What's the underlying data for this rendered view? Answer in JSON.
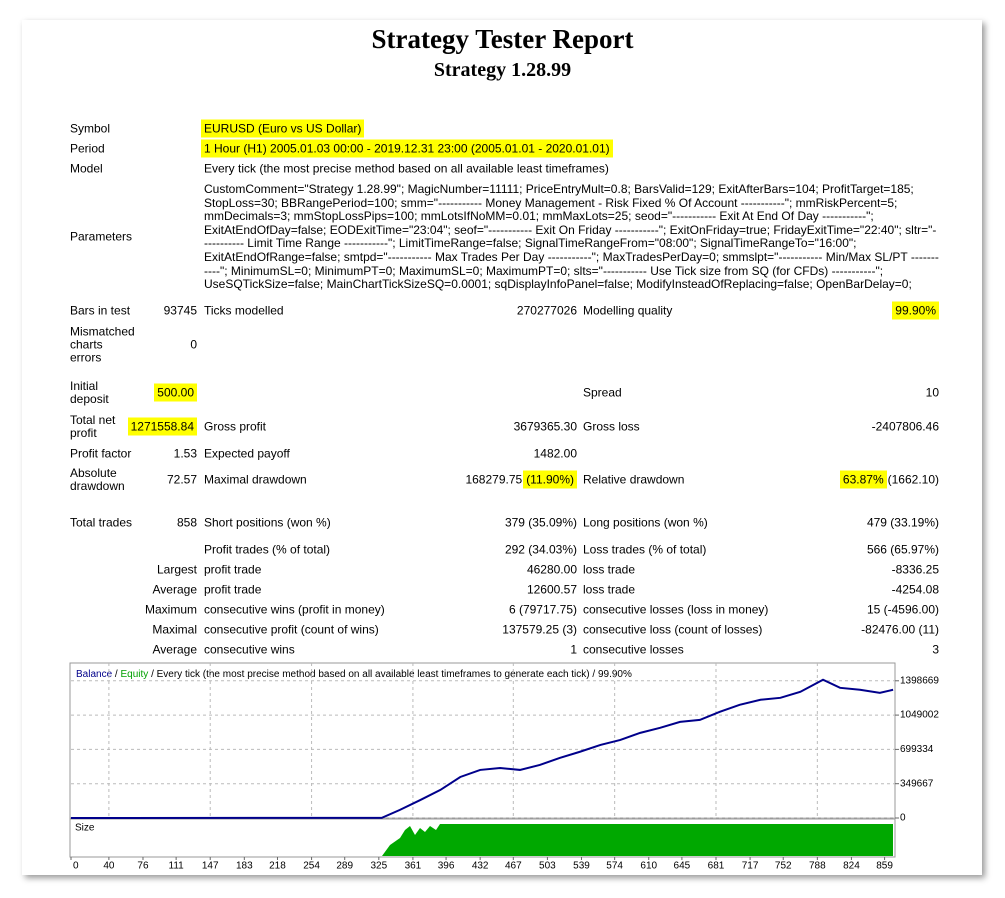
{
  "header": {
    "title": "Strategy Tester Report",
    "subtitle": "Strategy 1.28.99"
  },
  "info": {
    "symbol": {
      "label": "Symbol",
      "value": "EURUSD (Euro vs US Dollar)"
    },
    "period": {
      "label": "Period",
      "value": "1 Hour (H1) 2005.01.03 00:00 - 2019.12.31 23:00 (2005.01.01 - 2020.01.01)"
    },
    "model": {
      "label": "Model",
      "value": "Every tick (the most precise method based on all available least timeframes)"
    },
    "parameters": {
      "label": "Parameters",
      "value": "CustomComment=\"Strategy 1.28.99\"; MagicNumber=11111; PriceEntryMult=0.8; BarsValid=129; ExitAfterBars=104; ProfitTarget=185; StopLoss=30; BBRangePeriod=100; smm=\"----------- Money Management - Risk Fixed % Of Account -----------\"; mmRiskPercent=5; mmDecimals=3; mmStopLossPips=100; mmLotsIfNoMM=0.01; mmMaxLots=25; seod=\"----------- Exit At End Of Day -----------\"; ExitAtEndOfDay=false; EODExitTime=\"23:04\"; seof=\"----------- Exit On Friday -----------\"; ExitOnFriday=true; FridayExitTime=\"22:40\"; sltr=\"----------- Limit Time Range -----------\"; LimitTimeRange=false; SignalTimeRangeFrom=\"08:00\"; SignalTimeRangeTo=\"16:00\"; ExitAtEndOfRange=false; smtpd=\"----------- Max Trades Per Day -----------\"; MaxTradesPerDay=0; smmslpt=\"----------- Min/Max SL/PT -----------\"; MinimumSL=0; MinimumPT=0; MaximumSL=0; MaximumPT=0; slts=\"----------- Use Tick size from SQ (for CFDs) -----------\"; UseSQTickSize=false; MainChartTickSizeSQ=0.0001; sqDisplayInfoPanel=false; ModifyInsteadOfReplacing=false; OpenBarDelay=0;"
    }
  },
  "stats": {
    "rows": [
      {
        "label": "Bars in test",
        "value": "93745",
        "label2": "Ticks modelled",
        "value2": "270277026",
        "label3": "Modelling quality",
        "value3": "99.90%"
      },
      {
        "label": "Mismatched charts errors",
        "value": "0"
      },
      {
        "label": "Initial deposit",
        "value": "500.00",
        "label3": "Spread",
        "value3": "10"
      },
      {
        "label": "Total net profit",
        "value": "1271558.84",
        "label2": "Gross profit",
        "value2": "3679365.30",
        "label3": "Gross loss",
        "value3": "-2407806.46"
      },
      {
        "label": "Profit factor",
        "value": "1.53",
        "label2": "Expected payoff",
        "value2": "1482.00"
      },
      {
        "label": "Absolute drawdown",
        "value": "72.57",
        "label2": "Maximal drawdown",
        "value2": "168279.75",
        "value2_extra": "(11.90%)",
        "label3": "Relative drawdown",
        "value3": "63.87%",
        "value3_extra": "(1662.10)"
      },
      {
        "label": "Total trades",
        "value": "858",
        "label2": "Short positions (won %)",
        "value2": "379 (35.09%)",
        "label3": "Long positions (won %)",
        "value3": "479 (33.19%)"
      },
      {
        "label2": "Profit trades (% of total)",
        "value2": "292 (34.03%)",
        "label3": "Loss trades (% of total)",
        "value3": "566 (65.97%)"
      },
      {
        "prefix": "Largest",
        "label2": "profit trade",
        "value2": "46280.00",
        "label3": "loss trade",
        "value3": "-8336.25"
      },
      {
        "prefix": "Average",
        "label2": "profit trade",
        "value2": "12600.57",
        "label3": "loss trade",
        "value3": "-4254.08"
      },
      {
        "prefix": "Maximum",
        "label2": "consecutive wins (profit in money)",
        "value2": "6 (79717.75)",
        "label3": "consecutive losses (loss in money)",
        "value3": "15 (-4596.00)"
      },
      {
        "prefix": "Maximal",
        "label2": "consecutive profit (count of wins)",
        "value2": "137579.25 (3)",
        "label3": "consecutive loss (count of losses)",
        "value3": "-82476.00 (11)"
      },
      {
        "prefix": "Average",
        "label2": "consecutive wins",
        "value2": "1",
        "label3": "consecutive losses",
        "value3": "3"
      }
    ]
  },
  "chart": {
    "legend": {
      "balance": "Balance",
      "separator": "/",
      "equity": "Equity",
      "text": "Every tick (the most precise method based on all available least timeframes to generate each tick) / 99.90%"
    },
    "size_label": "Size",
    "balance_color": "#00008b",
    "equity_color": "#00a000",
    "xlim": [
      0,
      870
    ],
    "ylim": [
      0,
      1580000
    ],
    "xticks": [
      0,
      40,
      76,
      111,
      147,
      183,
      218,
      254,
      289,
      325,
      361,
      396,
      432,
      467,
      503,
      539,
      574,
      610,
      645,
      681,
      717,
      752,
      788,
      824,
      859
    ],
    "yticks": [
      0,
      349667,
      699334,
      1049002,
      1398669
    ],
    "x": [
      0,
      328,
      347,
      369,
      390,
      411,
      432,
      453,
      474,
      495,
      516,
      537,
      559,
      580,
      601,
      622,
      643,
      664,
      685,
      706,
      728,
      749,
      770,
      794,
      812,
      833,
      854,
      868
    ],
    "balance": [
      500,
      1000,
      81700,
      184000,
      286000,
      418000,
      490000,
      510000,
      490000,
      541000,
      612000,
      674000,
      745000,
      796000,
      868000,
      919000,
      980000,
      1000000,
      1082000,
      1154000,
      1205000,
      1225000,
      1286000,
      1409000,
      1327000,
      1307000,
      1276000,
      1307000
    ]
  }
}
